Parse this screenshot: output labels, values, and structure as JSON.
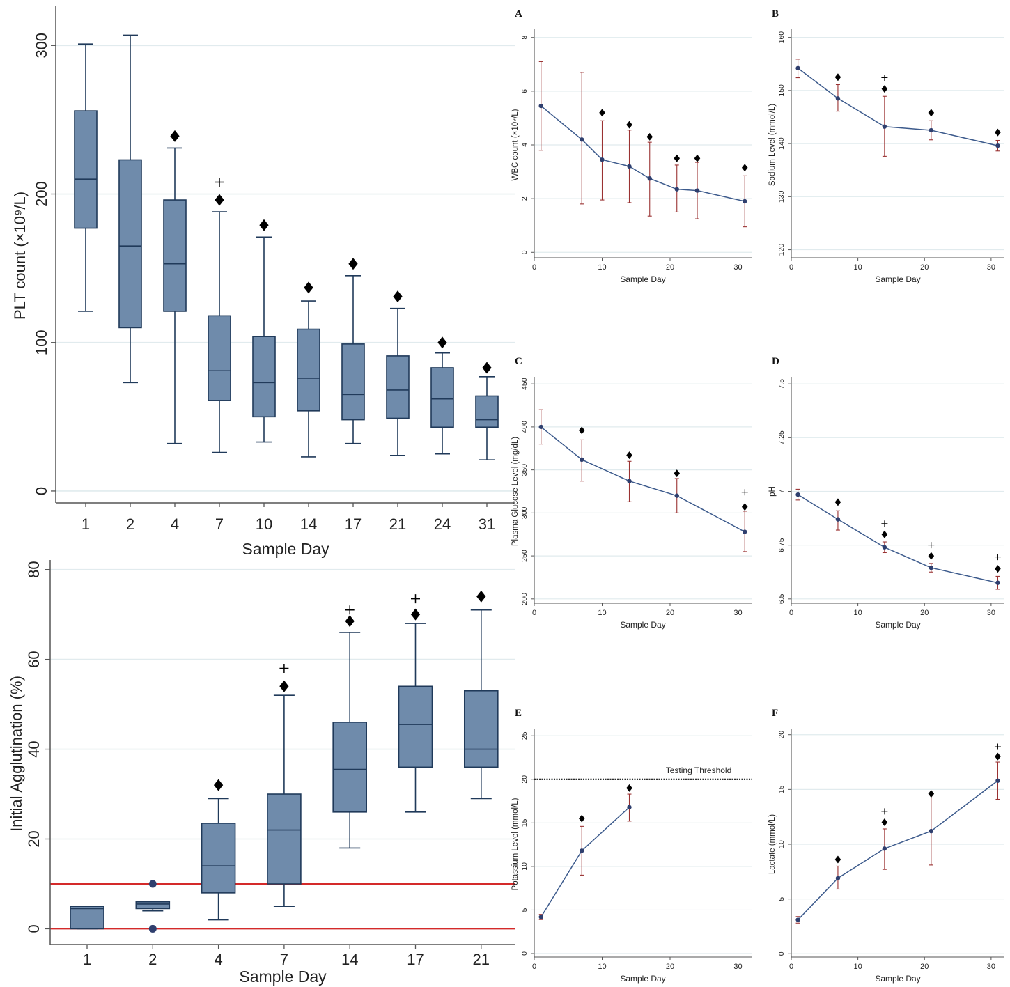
{
  "chart_data": [
    {
      "id": "plt",
      "type": "box",
      "xlabel": "Sample Day",
      "ylabel": "PLT count (×10⁹/L)",
      "ylim": [
        -8,
        325
      ],
      "yticks": [
        0,
        100,
        200,
        300
      ],
      "grid": true,
      "categories": [
        "1",
        "2",
        "4",
        "7",
        "10",
        "14",
        "17",
        "21",
        "24",
        "31"
      ],
      "boxes": [
        {
          "min": 121,
          "q1": 177,
          "median": 210,
          "q3": 256,
          "max": 301
        },
        {
          "min": 73,
          "q1": 110,
          "median": 165,
          "q3": 223,
          "max": 307
        },
        {
          "min": 32,
          "q1": 121,
          "median": 153,
          "q3": 196,
          "max": 231
        },
        {
          "min": 26,
          "q1": 61,
          "median": 81,
          "q3": 118,
          "max": 188
        },
        {
          "min": 33,
          "q1": 50,
          "median": 73,
          "q3": 104,
          "max": 171
        },
        {
          "min": 23,
          "q1": 54,
          "median": 76,
          "q3": 109,
          "max": 128
        },
        {
          "min": 32,
          "q1": 48,
          "median": 65,
          "q3": 99,
          "max": 145
        },
        {
          "min": 24,
          "q1": 49,
          "median": 68,
          "q3": 91,
          "max": 123
        },
        {
          "min": 25,
          "q1": 43,
          "median": 62,
          "q3": 83,
          "max": 93
        },
        {
          "min": 21,
          "q1": 43,
          "median": 48,
          "q3": 64,
          "max": 77
        }
      ],
      "diamond_markers": [
        {
          "category": "4",
          "y": 239
        },
        {
          "category": "7",
          "y": 196
        },
        {
          "category": "10",
          "y": 179
        },
        {
          "category": "14",
          "y": 137
        },
        {
          "category": "17",
          "y": 153
        },
        {
          "category": "21",
          "y": 131
        },
        {
          "category": "24",
          "y": 100
        },
        {
          "category": "31",
          "y": 83
        }
      ],
      "plus_markers": [
        {
          "category": "7",
          "y": 208
        }
      ]
    },
    {
      "id": "agglutination",
      "type": "box",
      "xlabel": "Sample Day",
      "ylabel": "Initial Agglutination (%)",
      "ylim": [
        -3.5,
        81.5
      ],
      "yticks": [
        0,
        20,
        40,
        60,
        80
      ],
      "grid": true,
      "reference_lines": [
        0,
        10
      ],
      "categories": [
        "1",
        "2",
        "4",
        "7",
        "14",
        "17",
        "21"
      ],
      "boxes": [
        {
          "min": 0,
          "q1": 0,
          "median": 4.5,
          "q3": 5,
          "max": 5
        },
        {
          "min": 4,
          "q1": 4.5,
          "median": 5.5,
          "q3": 6,
          "max": 6
        },
        {
          "min": 2,
          "q1": 8,
          "median": 14,
          "q3": 23.5,
          "max": 29
        },
        {
          "min": 5,
          "q1": 10,
          "median": 22,
          "q3": 30,
          "max": 52
        },
        {
          "min": 18,
          "q1": 26,
          "median": 35.5,
          "q3": 46,
          "max": 66
        },
        {
          "min": 26,
          "q1": 36,
          "median": 45.5,
          "q3": 54,
          "max": 68
        },
        {
          "min": 29,
          "q1": 36,
          "median": 40,
          "q3": 53,
          "max": 71
        }
      ],
      "outliers": [
        {
          "category": "2",
          "y": 10
        },
        {
          "category": "2",
          "y": 0
        }
      ],
      "diamond_markers": [
        {
          "category": "4",
          "y": 32
        },
        {
          "category": "7",
          "y": 54
        },
        {
          "category": "14",
          "y": 68.5
        },
        {
          "category": "17",
          "y": 70
        },
        {
          "category": "21",
          "y": 74
        }
      ],
      "plus_markers": [
        {
          "category": "7",
          "y": 58
        },
        {
          "category": "14",
          "y": 71
        },
        {
          "category": "17",
          "y": 73.5
        }
      ]
    },
    {
      "id": "A",
      "type": "line",
      "panel_label": "A",
      "xlabel": "Sample Day",
      "ylabel": "WBC count (×10⁹/L)",
      "xlim": [
        0,
        32
      ],
      "xticks": [
        0,
        10,
        20,
        30
      ],
      "ylim": [
        -0.2,
        8.2
      ],
      "yticks": [
        0,
        2,
        4,
        6,
        8
      ],
      "grid": true,
      "series": [
        {
          "x": [
            1,
            7,
            10,
            14,
            17,
            21,
            24,
            31
          ],
          "y": [
            5.45,
            4.2,
            3.45,
            3.2,
            2.75,
            2.35,
            2.3,
            1.9
          ],
          "err_low": [
            3.8,
            1.8,
            1.95,
            1.85,
            1.35,
            1.5,
            1.25,
            0.95
          ],
          "err_high": [
            7.1,
            6.7,
            4.9,
            4.55,
            4.1,
            3.25,
            3.35,
            2.85
          ]
        }
      ],
      "diamond_markers": [
        {
          "x": 10,
          "y": 5.2
        },
        {
          "x": 14,
          "y": 4.75
        },
        {
          "x": 17,
          "y": 4.3
        },
        {
          "x": 21,
          "y": 3.5
        },
        {
          "x": 24,
          "y": 3.5
        },
        {
          "x": 31,
          "y": 3.15
        }
      ],
      "plus_markers": []
    },
    {
      "id": "B",
      "type": "line",
      "panel_label": "B",
      "xlabel": "Sample Day",
      "ylabel": "Sodium Level (mmol/L)",
      "xlim": [
        0,
        32
      ],
      "xticks": [
        0,
        10,
        20,
        30
      ],
      "ylim": [
        118.5,
        161
      ],
      "yticks": [
        120,
        130,
        140,
        150,
        160
      ],
      "grid": true,
      "series": [
        {
          "x": [
            1,
            7,
            14,
            21,
            31
          ],
          "y": [
            154.2,
            148.5,
            143.2,
            142.5,
            139.6
          ],
          "err_low": [
            152.4,
            146.1,
            137.6,
            140.7,
            138.6
          ],
          "err_high": [
            155.9,
            151.1,
            148.9,
            144.3,
            140.6
          ]
        }
      ],
      "diamond_markers": [
        {
          "x": 7,
          "y": 152.5
        },
        {
          "x": 14,
          "y": 150.3
        },
        {
          "x": 21,
          "y": 145.8
        },
        {
          "x": 31,
          "y": 142.1
        }
      ],
      "plus_markers": [
        {
          "x": 14,
          "y": 152.4
        }
      ]
    },
    {
      "id": "C",
      "type": "line",
      "panel_label": "C",
      "xlabel": "Sample Day",
      "ylabel": "Plasma Glucose Level (mg/dL)",
      "xlim": [
        0,
        32
      ],
      "xticks": [
        0,
        10,
        20,
        30
      ],
      "ylim": [
        195,
        455
      ],
      "yticks": [
        200,
        250,
        300,
        350,
        400,
        450
      ],
      "grid": true,
      "series": [
        {
          "x": [
            1,
            7,
            14,
            21,
            31
          ],
          "y": [
            400,
            362,
            337,
            320,
            278
          ],
          "err_low": [
            380,
            337,
            313,
            300,
            255
          ],
          "err_high": [
            420,
            385,
            360,
            340,
            302
          ]
        }
      ],
      "diamond_markers": [
        {
          "x": 7,
          "y": 396
        },
        {
          "x": 14,
          "y": 367
        },
        {
          "x": 21,
          "y": 346
        },
        {
          "x": 31,
          "y": 307
        }
      ],
      "plus_markers": [
        {
          "x": 31,
          "y": 324
        }
      ]
    },
    {
      "id": "D",
      "type": "line",
      "panel_label": "D",
      "xlabel": "Sample Day",
      "ylabel": "pH",
      "xlim": [
        0,
        32
      ],
      "xticks": [
        0,
        10,
        20,
        30
      ],
      "ylim": [
        6.48,
        7.52
      ],
      "yticks": [
        "6.5",
        "6.75",
        "7",
        "7.25",
        "7.5"
      ],
      "grid": true,
      "series": [
        {
          "x": [
            1,
            7,
            14,
            21,
            31
          ],
          "y": [
            6.985,
            6.87,
            6.74,
            6.645,
            6.575
          ],
          "err_low": [
            6.96,
            6.82,
            6.715,
            6.625,
            6.545
          ],
          "err_high": [
            7.01,
            6.91,
            6.765,
            6.665,
            6.605
          ]
        }
      ],
      "diamond_markers": [
        {
          "x": 7,
          "y": 6.95
        },
        {
          "x": 14,
          "y": 6.8
        },
        {
          "x": 21,
          "y": 6.7
        },
        {
          "x": 31,
          "y": 6.64
        }
      ],
      "plus_markers": [
        {
          "x": 14,
          "y": 6.85
        },
        {
          "x": 21,
          "y": 6.75
        },
        {
          "x": 31,
          "y": 6.695
        }
      ]
    },
    {
      "id": "E",
      "type": "line",
      "panel_label": "E",
      "xlabel": "Sample Day",
      "ylabel": "Potassium Level (mmol/L)",
      "xlim": [
        0,
        32
      ],
      "xticks": [
        0,
        10,
        20,
        30
      ],
      "ylim": [
        -0.4,
        25.5
      ],
      "yticks": [
        0,
        5,
        10,
        15,
        20,
        25
      ],
      "grid": true,
      "reference_line": {
        "y": 20,
        "label": "Testing Threshold"
      },
      "series": [
        {
          "x": [
            1,
            7,
            14
          ],
          "y": [
            4.2,
            11.8,
            16.8
          ],
          "err_low": [
            3.9,
            9,
            15.2
          ],
          "err_high": [
            4.5,
            14.6,
            18.3
          ]
        }
      ],
      "diamond_markers": [
        {
          "x": 7,
          "y": 15.5
        },
        {
          "x": 14,
          "y": 19
        }
      ],
      "plus_markers": []
    },
    {
      "id": "F",
      "type": "line",
      "panel_label": "F",
      "xlabel": "Sample Day",
      "ylabel": "Lactate (mmol/L)",
      "xlim": [
        0,
        32
      ],
      "xticks": [
        0,
        10,
        20,
        30
      ],
      "ylim": [
        -0.3,
        20.3
      ],
      "yticks": [
        0,
        5,
        10,
        15,
        20
      ],
      "grid": true,
      "series": [
        {
          "x": [
            1,
            7,
            14,
            21,
            31
          ],
          "y": [
            3.1,
            6.9,
            9.6,
            11.2,
            15.8
          ],
          "err_low": [
            2.8,
            5.9,
            7.7,
            8.1,
            14.1
          ],
          "err_high": [
            3.4,
            8,
            11.4,
            14.5,
            17.5
          ]
        }
      ],
      "diamond_markers": [
        {
          "x": 7,
          "y": 8.6
        },
        {
          "x": 14,
          "y": 12
        },
        {
          "x": 21,
          "y": 14.6
        },
        {
          "x": 31,
          "y": 18
        }
      ],
      "plus_markers": [
        {
          "x": 14,
          "y": 13
        },
        {
          "x": 31,
          "y": 18.9
        }
      ]
    }
  ],
  "colors": {
    "box_fill": "#6f8bab",
    "box_stroke": "#203a5a",
    "line": "#3c5a8c",
    "point": "#2f3f6e",
    "error_bar": "#9a3232",
    "grid": "#e1ebee",
    "axis": "#555555",
    "reference_red": "#d42a2a",
    "marker": "#000000"
  }
}
